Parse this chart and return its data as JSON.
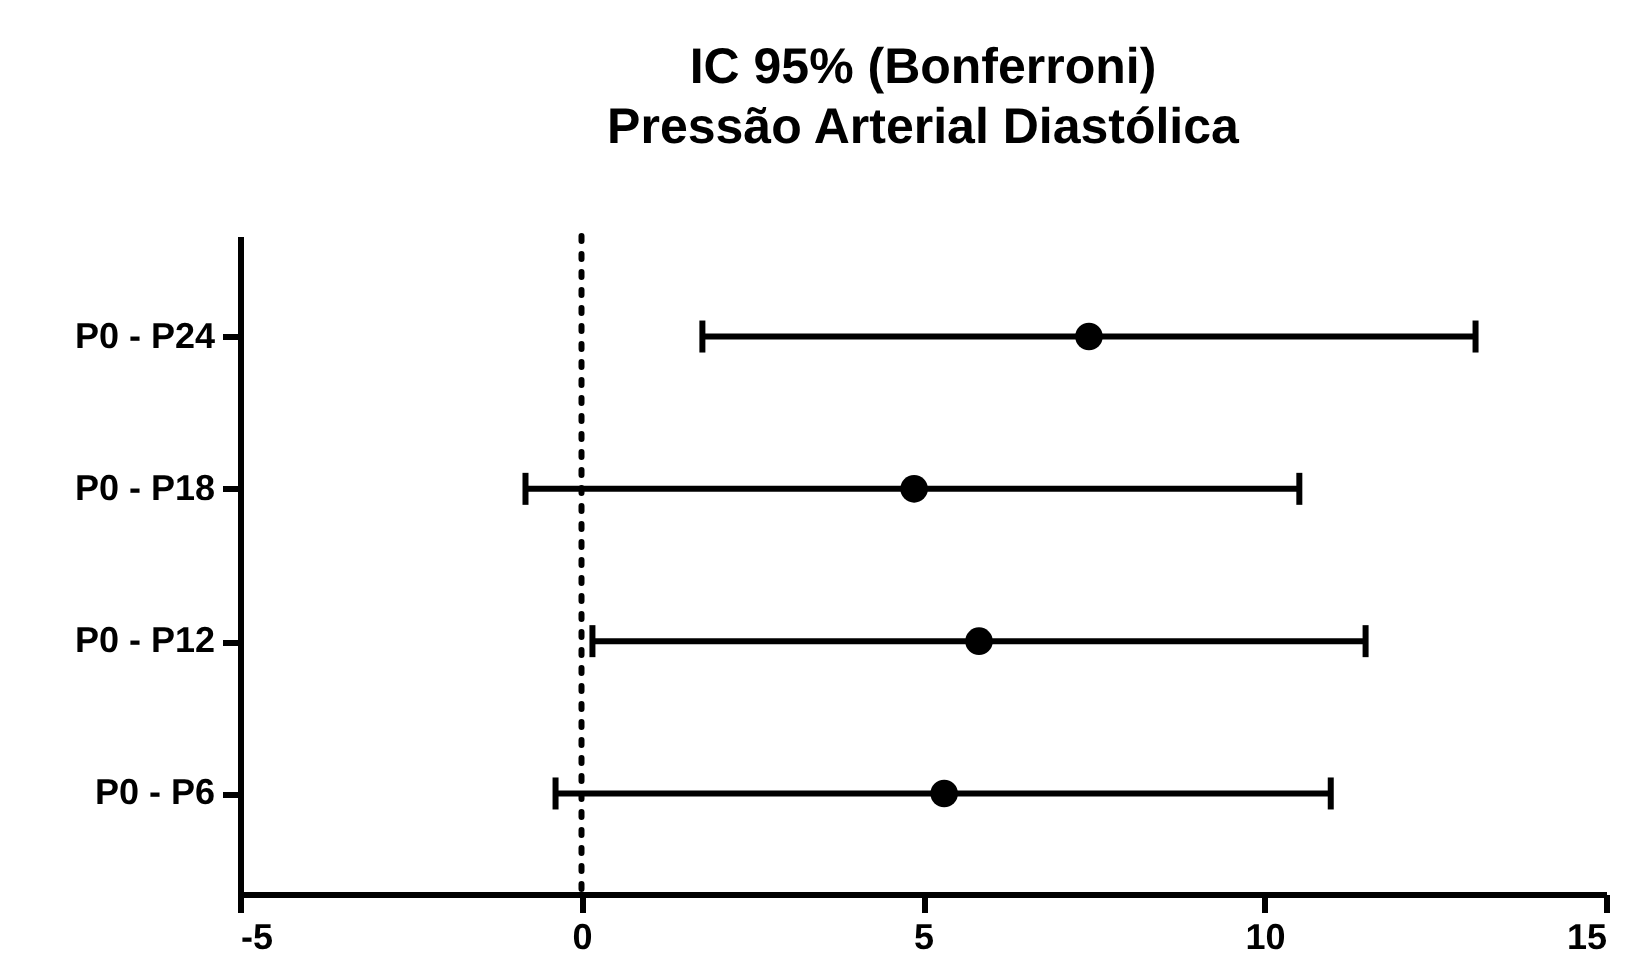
{
  "chart_data": {
    "type": "scatter",
    "orientation": "horizontal",
    "title": "IC 95% (Bonferroni)\nPressão Arterial Diastólica",
    "categories": [
      "P0 - P24",
      "P0 - P18",
      "P0 - P12",
      "P0 - P6"
    ],
    "series": [
      {
        "color": "#000000",
        "values": [
          7.43,
          4.87,
          5.82,
          5.31
        ],
        "errors": [
          [
            1.77,
            13.09
          ],
          [
            -0.82,
            10.51
          ],
          [
            0.16,
            11.48
          ],
          [
            -0.38,
            10.97
          ]
        ]
      }
    ],
    "xlim": [
      -5,
      15
    ],
    "xticks": [
      -5,
      0,
      5,
      10,
      15
    ],
    "marker": "circle",
    "grid": false,
    "legend": false,
    "ref_lines": [
      {
        "axis": "x",
        "value": 0,
        "line_style": "dotted",
        "color": "#000000"
      }
    ]
  }
}
